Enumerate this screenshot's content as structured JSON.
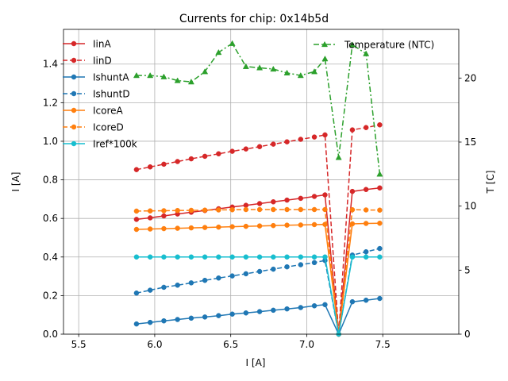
{
  "chart_data": {
    "type": "line",
    "title": "Currents for chip: 0x14b5d",
    "xlabel": "I [A]",
    "ylabel": "I [A]",
    "y2label": "T [C]",
    "xlim": [
      5.4,
      8.0
    ],
    "ylim": [
      0,
      1.58
    ],
    "y2lim": [
      0,
      23.8
    ],
    "xticks": [
      5.5,
      6.0,
      6.5,
      7.0,
      7.5
    ],
    "xtick_labels": [
      "5.5",
      "6.0",
      "6.5",
      "7.0",
      "7.5"
    ],
    "yticks": [
      0.0,
      0.2,
      0.4,
      0.6,
      0.8,
      1.0,
      1.2,
      1.4
    ],
    "ytick_labels": [
      "0.0",
      "0.2",
      "0.4",
      "0.6",
      "0.8",
      "1.0",
      "1.2",
      "1.4"
    ],
    "y2ticks": [
      0,
      5,
      10,
      15,
      20
    ],
    "y2tick_labels": [
      "0",
      "5",
      "10",
      "15",
      "20"
    ],
    "grid": true,
    "legend_left": "upper-left",
    "legend_right": "upper-right",
    "x": [
      5.88,
      5.97,
      6.06,
      6.15,
      6.24,
      6.33,
      6.42,
      6.51,
      6.6,
      6.69,
      6.78,
      6.87,
      6.96,
      7.05,
      7.12,
      7.21,
      7.3,
      7.39,
      7.48
    ],
    "series": [
      {
        "name": "IinA",
        "color": "#d62728",
        "dash": "solid",
        "axis": "left",
        "values": [
          0.595,
          0.603,
          0.613,
          0.623,
          0.632,
          0.641,
          0.65,
          0.659,
          0.668,
          0.677,
          0.686,
          0.695,
          0.704,
          0.714,
          0.722,
          0.0,
          0.74,
          0.75,
          0.758
        ]
      },
      {
        "name": "IinD",
        "color": "#d62728",
        "dash": "dashed",
        "axis": "left",
        "values": [
          0.853,
          0.867,
          0.881,
          0.895,
          0.909,
          0.922,
          0.935,
          0.948,
          0.96,
          0.972,
          0.985,
          0.997,
          1.01,
          1.022,
          1.033,
          0.0,
          1.059,
          1.071,
          1.085
        ]
      },
      {
        "name": "IshuntA",
        "color": "#1f77b4",
        "dash": "solid",
        "axis": "left",
        "values": [
          0.053,
          0.061,
          0.069,
          0.076,
          0.083,
          0.089,
          0.096,
          0.104,
          0.11,
          0.117,
          0.124,
          0.131,
          0.138,
          0.147,
          0.153,
          0.0,
          0.168,
          0.176,
          0.185
        ]
      },
      {
        "name": "IshuntD",
        "color": "#1f77b4",
        "dash": "dashed",
        "axis": "left",
        "values": [
          0.213,
          0.228,
          0.243,
          0.254,
          0.266,
          0.279,
          0.291,
          0.302,
          0.313,
          0.325,
          0.337,
          0.349,
          0.36,
          0.371,
          0.382,
          0.0,
          0.41,
          0.427,
          0.444
        ]
      },
      {
        "name": "IcoreA",
        "color": "#ff7f0e",
        "dash": "solid",
        "axis": "left",
        "values": [
          0.543,
          0.545,
          0.547,
          0.549,
          0.551,
          0.553,
          0.555,
          0.557,
          0.559,
          0.561,
          0.563,
          0.565,
          0.566,
          0.568,
          0.569,
          0.0,
          0.572,
          0.574,
          0.575
        ]
      },
      {
        "name": "IcoreD",
        "color": "#ff7f0e",
        "dash": "dashed",
        "axis": "left",
        "values": [
          0.638,
          0.639,
          0.64,
          0.641,
          0.642,
          0.643,
          0.644,
          0.645,
          0.646,
          0.646,
          0.646,
          0.646,
          0.646,
          0.646,
          0.646,
          0.0,
          0.645,
          0.644,
          0.643
        ]
      },
      {
        "name": "Iref*100k",
        "color": "#17becf",
        "dash": "solid",
        "axis": "left",
        "values": [
          0.4,
          0.4,
          0.4,
          0.4,
          0.4,
          0.4,
          0.4,
          0.4,
          0.4,
          0.4,
          0.4,
          0.4,
          0.4,
          0.4,
          0.4,
          0.0,
          0.4,
          0.4,
          0.4
        ]
      },
      {
        "name": "Temperature (NTC)",
        "color": "#2ca02c",
        "dash": "dashdot",
        "axis": "right",
        "values": [
          20.2,
          20.2,
          20.1,
          19.8,
          19.7,
          20.5,
          22.0,
          22.7,
          20.9,
          20.8,
          20.7,
          20.4,
          20.2,
          20.5,
          21.5,
          13.8,
          22.6,
          21.9,
          12.5
        ]
      }
    ]
  }
}
